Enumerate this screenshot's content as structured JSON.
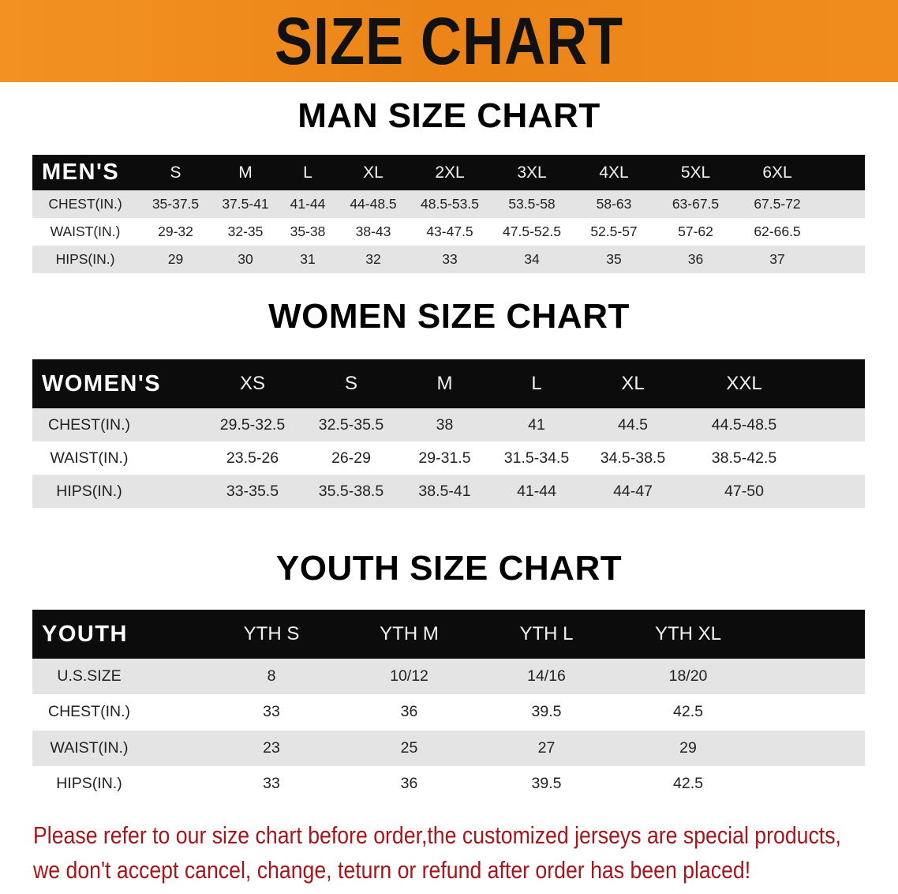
{
  "banner": {
    "title": "SIZE CHART",
    "color": "#ee8a1e"
  },
  "men": {
    "title": "MAN SIZE CHART",
    "header": [
      "MEN'S",
      "S",
      "M",
      "L",
      "XL",
      "2XL",
      "3XL",
      "4XL",
      "5XL",
      "6XL"
    ],
    "rows": [
      [
        "CHEST(IN.)",
        "35-37.5",
        "37.5-41",
        "41-44",
        "44-48.5",
        "48.5-53.5",
        "53.5-58",
        "58-63",
        "63-67.5",
        "67.5-72"
      ],
      [
        "WAIST(IN.)",
        "29-32",
        "32-35",
        "35-38",
        "38-43",
        "43-47.5",
        "47.5-52.5",
        "52.5-57",
        "57-62",
        "62-66.5"
      ],
      [
        "HIPS(IN.)",
        "29",
        "30",
        "31",
        "32",
        "33",
        "34",
        "35",
        "36",
        "37"
      ]
    ]
  },
  "women": {
    "title": "WOMEN SIZE CHART",
    "header": [
      "WOMEN'S",
      "XS",
      "S",
      "M",
      "L",
      "XL",
      "XXL"
    ],
    "rows": [
      [
        "CHEST(IN.)",
        "29.5-32.5",
        "32.5-35.5",
        "38",
        "41",
        "44.5",
        "44.5-48.5"
      ],
      [
        "WAIST(IN.)",
        "23.5-26",
        "26-29",
        "29-31.5",
        "31.5-34.5",
        "34.5-38.5",
        "38.5-42.5"
      ],
      [
        "HIPS(IN.)",
        "33-35.5",
        "35.5-38.5",
        "38.5-41",
        "41-44",
        "44-47",
        "47-50"
      ]
    ]
  },
  "youth": {
    "title": "YOUTH SIZE CHART",
    "header": [
      "YOUTH",
      "YTH S",
      "YTH M",
      "YTH L",
      "YTH XL"
    ],
    "rows": [
      [
        "U.S.SIZE",
        "8",
        "10/12",
        "14/16",
        "18/20"
      ],
      [
        "CHEST(IN.)",
        "33",
        "36",
        "39.5",
        "42.5"
      ],
      [
        "WAIST(IN.)",
        "23",
        "25",
        "27",
        "29"
      ],
      [
        "HIPS(IN.)",
        "33",
        "36",
        "39.5",
        "42.5"
      ]
    ]
  },
  "notice": {
    "line1": "Please refer to our size chart before order,the customized jerseys are special products,",
    "line2": "we don't accept cancel, change, teturn or refund after order has been placed!",
    "color": "#a5161b"
  }
}
